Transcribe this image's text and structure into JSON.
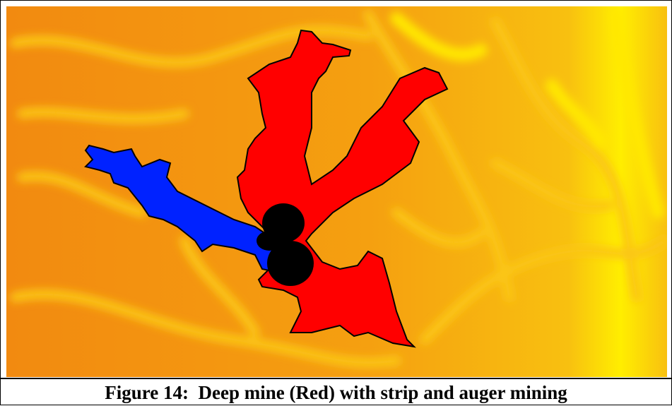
{
  "caption": "Figure 14:  Deep mine (Red) with strip and auger mining"
}
